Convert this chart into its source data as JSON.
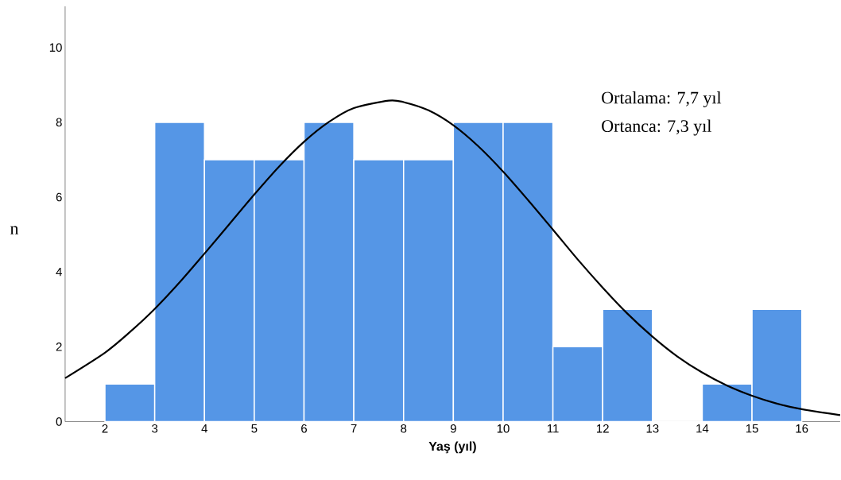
{
  "chart_data": {
    "type": "histogram",
    "xlabel": "Yaş (yıl)",
    "ylabel": "n",
    "bins": [
      2,
      3,
      4,
      5,
      6,
      7,
      8,
      9,
      10,
      11,
      12,
      13,
      14,
      15,
      16
    ],
    "values": [
      1,
      8,
      7,
      7,
      8,
      7,
      7,
      8,
      8,
      2,
      3,
      0,
      1,
      3
    ],
    "color": "#5596e6",
    "series": [
      {
        "type": "line",
        "color": "#000000",
        "x": [
          1.2,
          2,
          2.5,
          3,
          3.5,
          4,
          4.5,
          5,
          5.5,
          6,
          6.5,
          7,
          7.7,
          8,
          8.5,
          9,
          9.5,
          10,
          10.5,
          11,
          11.5,
          12,
          12.5,
          13,
          13.5,
          14,
          14.5,
          15,
          15.5,
          16,
          16.77
        ],
        "values": [
          1.16,
          1.84,
          2.39,
          3.01,
          3.72,
          4.49,
          5.28,
          6.07,
          6.82,
          7.48,
          8.01,
          8.38,
          8.58,
          8.54,
          8.32,
          7.92,
          7.36,
          6.68,
          5.92,
          5.13,
          4.33,
          3.58,
          2.88,
          2.27,
          1.74,
          1.31,
          0.96,
          0.69,
          0.48,
          0.33,
          0.17
        ]
      }
    ],
    "xlim": [
      1.2,
      16.77
    ],
    "ylim": [
      0,
      11.1
    ],
    "xticks": [
      2,
      3,
      4,
      5,
      6,
      7,
      8,
      9,
      10,
      11,
      12,
      13,
      14,
      15,
      16
    ],
    "yticks": [
      0,
      2,
      4,
      6,
      8,
      10
    ],
    "grid": false,
    "annotations": [
      "Ortalama: 7,7 yıl",
      "Ortanca: 7,3 yıl"
    ]
  }
}
